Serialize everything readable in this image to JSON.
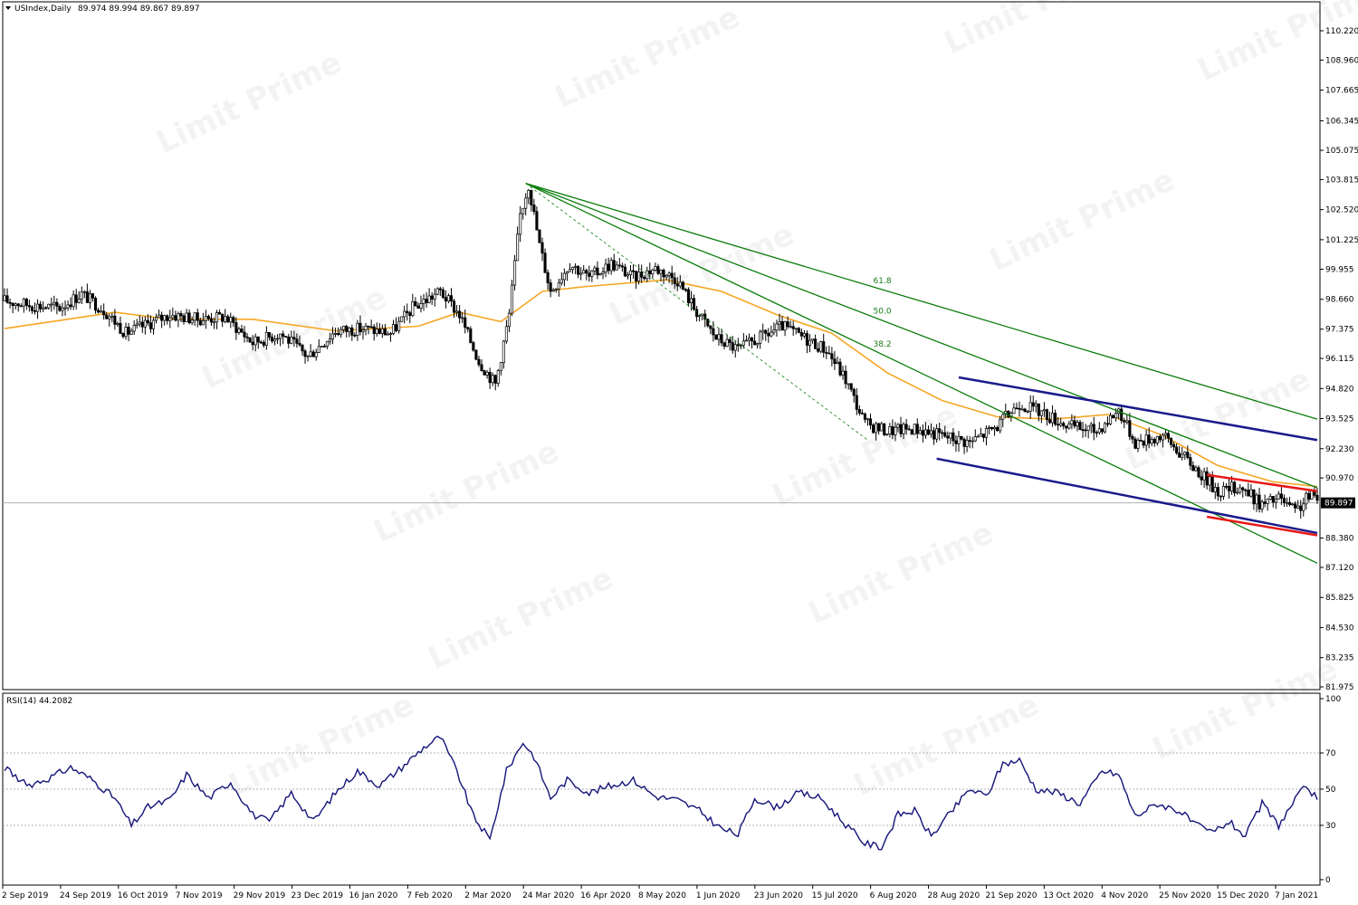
{
  "header": {
    "symbol": "USIndex,Daily",
    "ohlc": "89.974 89.994 89.867 89.897"
  },
  "watermark": "Limit Prime",
  "colors": {
    "up_body": "#ffffff",
    "down_body": "#000000",
    "ma": "#f5a623",
    "fan": "#0a7d0a",
    "channel": "#1a1a8c",
    "flag": "#e81818",
    "rsi": "#14147a",
    "bid_line": "#b0b0b0"
  },
  "chart_data": [
    {
      "type": "candlestick",
      "title": "USIndex,Daily",
      "ylim": [
        81.975,
        110.22
      ],
      "y_ticks": [
        "110.220",
        "108.960",
        "107.665",
        "106.345",
        "105.075",
        "103.815",
        "102.520",
        "101.225",
        "99.955",
        "98.660",
        "97.375",
        "96.115",
        "94.820",
        "93.525",
        "92.230",
        "90.970",
        "89.897",
        "88.380",
        "87.120",
        "85.825",
        "84.530",
        "83.235",
        "81.975"
      ],
      "last_price_label": "89.897",
      "last_price": 89.897,
      "x_labels": [
        "2 Sep 2019",
        "24 Sep 2019",
        "16 Oct 2019",
        "7 Nov 2019",
        "29 Nov 2019",
        "23 Dec 2019",
        "16 Jan 2020",
        "7 Feb 2020",
        "2 Mar 2020",
        "24 Mar 2020",
        "16 Apr 2020",
        "8 May 2020",
        "1 Jun 2020",
        "23 Jun 2020",
        "15 Jul 2020",
        "6 Aug 2020",
        "28 Aug 2020",
        "21 Sep 2020",
        "13 Oct 2020",
        "4 Nov 2020",
        "25 Nov 2020",
        "15 Dec 2020",
        "7 Jan 2021"
      ],
      "price_path": [
        {
          "bar": 0,
          "close": 98.6
        },
        {
          "bar": 10,
          "close": 98.4
        },
        {
          "bar": 20,
          "close": 98.3
        },
        {
          "bar": 28,
          "close": 98.9
        },
        {
          "bar": 36,
          "close": 98.2
        },
        {
          "bar": 44,
          "close": 97.2
        },
        {
          "bar": 52,
          "close": 97.6
        },
        {
          "bar": 60,
          "close": 98.0
        },
        {
          "bar": 70,
          "close": 97.8
        },
        {
          "bar": 80,
          "close": 97.9
        },
        {
          "bar": 90,
          "close": 96.8
        },
        {
          "bar": 100,
          "close": 97.2
        },
        {
          "bar": 110,
          "close": 96.2
        },
        {
          "bar": 120,
          "close": 97.3
        },
        {
          "bar": 130,
          "close": 97.4
        },
        {
          "bar": 140,
          "close": 97.2
        },
        {
          "bar": 148,
          "close": 98.3
        },
        {
          "bar": 158,
          "close": 99.0
        },
        {
          "bar": 165,
          "close": 98.0
        },
        {
          "bar": 172,
          "close": 96.0
        },
        {
          "bar": 178,
          "close": 95.0
        },
        {
          "bar": 183,
          "close": 98.0
        },
        {
          "bar": 187,
          "close": 102.3
        },
        {
          "bar": 190,
          "close": 103.6
        },
        {
          "bar": 194,
          "close": 101.0
        },
        {
          "bar": 198,
          "close": 99.0
        },
        {
          "bar": 205,
          "close": 100.2
        },
        {
          "bar": 212,
          "close": 99.6
        },
        {
          "bar": 220,
          "close": 100.2
        },
        {
          "bar": 228,
          "close": 99.6
        },
        {
          "bar": 236,
          "close": 100.0
        },
        {
          "bar": 244,
          "close": 99.5
        },
        {
          "bar": 250,
          "close": 98.3
        },
        {
          "bar": 258,
          "close": 97.0
        },
        {
          "bar": 266,
          "close": 96.5
        },
        {
          "bar": 274,
          "close": 97.0
        },
        {
          "bar": 282,
          "close": 97.5
        },
        {
          "bar": 290,
          "close": 97.0
        },
        {
          "bar": 298,
          "close": 96.5
        },
        {
          "bar": 305,
          "close": 95.2
        },
        {
          "bar": 312,
          "close": 93.3
        },
        {
          "bar": 320,
          "close": 93.0
        },
        {
          "bar": 330,
          "close": 93.1
        },
        {
          "bar": 340,
          "close": 92.8
        },
        {
          "bar": 350,
          "close": 92.5
        },
        {
          "bar": 360,
          "close": 93.2
        },
        {
          "bar": 368,
          "close": 94.2
        },
        {
          "bar": 376,
          "close": 93.8
        },
        {
          "bar": 386,
          "close": 93.2
        },
        {
          "bar": 396,
          "close": 93.0
        },
        {
          "bar": 404,
          "close": 93.9
        },
        {
          "bar": 410,
          "close": 92.5
        },
        {
          "bar": 420,
          "close": 92.8
        },
        {
          "bar": 430,
          "close": 91.6
        },
        {
          "bar": 440,
          "close": 90.4
        },
        {
          "bar": 448,
          "close": 90.6
        },
        {
          "bar": 456,
          "close": 89.8
        },
        {
          "bar": 462,
          "close": 90.1
        },
        {
          "bar": 468,
          "close": 89.5
        },
        {
          "bar": 474,
          "close": 90.3
        },
        {
          "bar": 476,
          "close": 89.9
        }
      ],
      "ma_path": [
        {
          "bar": 0,
          "value": 97.4
        },
        {
          "bar": 40,
          "value": 98.1
        },
        {
          "bar": 60,
          "value": 97.8
        },
        {
          "bar": 90,
          "value": 97.8
        },
        {
          "bar": 120,
          "value": 97.3
        },
        {
          "bar": 150,
          "value": 97.5
        },
        {
          "bar": 165,
          "value": 98.1
        },
        {
          "bar": 180,
          "value": 97.7
        },
        {
          "bar": 195,
          "value": 99.0
        },
        {
          "bar": 210,
          "value": 99.2
        },
        {
          "bar": 240,
          "value": 99.5
        },
        {
          "bar": 260,
          "value": 99.0
        },
        {
          "bar": 280,
          "value": 98.0
        },
        {
          "bar": 300,
          "value": 97.2
        },
        {
          "bar": 320,
          "value": 95.5
        },
        {
          "bar": 340,
          "value": 94.3
        },
        {
          "bar": 360,
          "value": 93.6
        },
        {
          "bar": 380,
          "value": 93.5
        },
        {
          "bar": 400,
          "value": 93.7
        },
        {
          "bar": 420,
          "value": 92.8
        },
        {
          "bar": 440,
          "value": 91.5
        },
        {
          "bar": 460,
          "value": 90.8
        },
        {
          "bar": 476,
          "value": 90.6
        }
      ],
      "fan": {
        "origin": {
          "bar": 189,
          "price": 103.65
        },
        "lines": [
          {
            "label": "61.8",
            "end": {
              "bar": 476,
              "price": 93.5
            }
          },
          {
            "label": "50.0",
            "end": {
              "bar": 476,
              "price": 90.55
            }
          },
          {
            "label": "38.2",
            "end": {
              "bar": 476,
              "price": 87.3
            }
          }
        ],
        "dashed_to": {
          "bar": 313,
          "price": 92.6
        }
      },
      "channel": [
        {
          "from": {
            "bar": 346,
            "price": 95.3
          },
          "to": {
            "bar": 476,
            "price": 92.6
          }
        },
        {
          "from": {
            "bar": 338,
            "price": 91.8
          },
          "to": {
            "bar": 476,
            "price": 88.6
          }
        }
      ],
      "flag": [
        {
          "from": {
            "bar": 436,
            "price": 91.1
          },
          "to": {
            "bar": 476,
            "price": 90.4
          }
        },
        {
          "from": {
            "bar": 436,
            "price": 89.3
          },
          "to": {
            "bar": 476,
            "price": 88.5
          }
        }
      ]
    },
    {
      "type": "line",
      "title": "RSI(14) 44.2082",
      "ylim": [
        0,
        100
      ],
      "y_ticks": [
        100,
        70,
        50,
        30,
        0
      ],
      "levels": [
        70,
        50,
        30
      ],
      "series": [
        {
          "values": [
            {
              "bar": 0,
              "value": 62
            },
            {
              "bar": 8,
              "value": 52
            },
            {
              "bar": 16,
              "value": 56
            },
            {
              "bar": 24,
              "value": 62
            },
            {
              "bar": 32,
              "value": 55
            },
            {
              "bar": 40,
              "value": 45
            },
            {
              "bar": 46,
              "value": 30
            },
            {
              "bar": 52,
              "value": 40
            },
            {
              "bar": 60,
              "value": 44
            },
            {
              "bar": 66,
              "value": 58
            },
            {
              "bar": 74,
              "value": 45
            },
            {
              "bar": 82,
              "value": 54
            },
            {
              "bar": 90,
              "value": 36
            },
            {
              "bar": 96,
              "value": 32
            },
            {
              "bar": 104,
              "value": 48
            },
            {
              "bar": 112,
              "value": 32
            },
            {
              "bar": 120,
              "value": 48
            },
            {
              "bar": 128,
              "value": 60
            },
            {
              "bar": 136,
              "value": 52
            },
            {
              "bar": 144,
              "value": 62
            },
            {
              "bar": 152,
              "value": 73
            },
            {
              "bar": 158,
              "value": 79
            },
            {
              "bar": 164,
              "value": 60
            },
            {
              "bar": 170,
              "value": 35
            },
            {
              "bar": 176,
              "value": 22
            },
            {
              "bar": 182,
              "value": 60
            },
            {
              "bar": 188,
              "value": 76
            },
            {
              "bar": 192,
              "value": 68
            },
            {
              "bar": 198,
              "value": 45
            },
            {
              "bar": 204,
              "value": 55
            },
            {
              "bar": 212,
              "value": 48
            },
            {
              "bar": 220,
              "value": 52
            },
            {
              "bar": 228,
              "value": 55
            },
            {
              "bar": 236,
              "value": 46
            },
            {
              "bar": 244,
              "value": 44
            },
            {
              "bar": 252,
              "value": 38
            },
            {
              "bar": 260,
              "value": 28
            },
            {
              "bar": 266,
              "value": 25
            },
            {
              "bar": 272,
              "value": 45
            },
            {
              "bar": 280,
              "value": 40
            },
            {
              "bar": 288,
              "value": 48
            },
            {
              "bar": 296,
              "value": 45
            },
            {
              "bar": 304,
              "value": 32
            },
            {
              "bar": 312,
              "value": 20
            },
            {
              "bar": 318,
              "value": 18
            },
            {
              "bar": 324,
              "value": 36
            },
            {
              "bar": 330,
              "value": 38
            },
            {
              "bar": 336,
              "value": 24
            },
            {
              "bar": 342,
              "value": 35
            },
            {
              "bar": 350,
              "value": 50
            },
            {
              "bar": 356,
              "value": 46
            },
            {
              "bar": 362,
              "value": 64
            },
            {
              "bar": 368,
              "value": 66
            },
            {
              "bar": 374,
              "value": 50
            },
            {
              "bar": 382,
              "value": 48
            },
            {
              "bar": 390,
              "value": 42
            },
            {
              "bar": 398,
              "value": 60
            },
            {
              "bar": 404,
              "value": 58
            },
            {
              "bar": 410,
              "value": 35
            },
            {
              "bar": 418,
              "value": 42
            },
            {
              "bar": 426,
              "value": 38
            },
            {
              "bar": 432,
              "value": 30
            },
            {
              "bar": 438,
              "value": 26
            },
            {
              "bar": 444,
              "value": 32
            },
            {
              "bar": 450,
              "value": 24
            },
            {
              "bar": 456,
              "value": 42
            },
            {
              "bar": 462,
              "value": 30
            },
            {
              "bar": 468,
              "value": 44
            },
            {
              "bar": 472,
              "value": 52
            },
            {
              "bar": 476,
              "value": 44.2
            }
          ]
        }
      ]
    }
  ]
}
